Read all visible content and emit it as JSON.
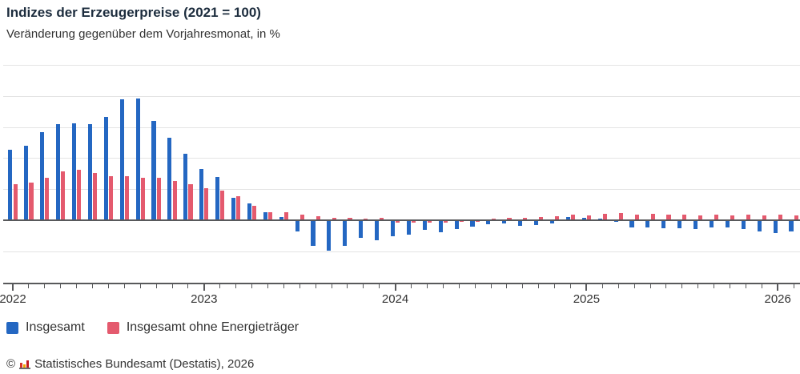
{
  "header": {
    "title": "Indizes der Erzeugerpreise (2021 = 100)",
    "subtitle": "Veränderung gegenüber dem Vorjahresmonat, in %"
  },
  "legend": {
    "items": [
      {
        "label": "Insgesamt",
        "color": "#2467c2"
      },
      {
        "label": "Insgesamt ohne Energieträger",
        "color": "#e45a6e"
      }
    ]
  },
  "footer": {
    "copyright_symbol": "©",
    "source_text": "Statistisches Bundesamt (Destatis), 2026"
  },
  "colors": {
    "background": "#ffffff",
    "gridline": "#e4e4e4",
    "axis": "#58595b",
    "text": "#333333",
    "title": "#1d2d3e",
    "series_total": "#2467c2",
    "series_ex_energy": "#e45a6e"
  },
  "chart_data": {
    "type": "bar",
    "title": "Indizes der Erzeugerpreise (2021 = 100)",
    "subtitle": "Veränderung gegenüber dem Vorjahresmonat, in %",
    "unit": "%",
    "ylim": [
      -20,
      50
    ],
    "grid": true,
    "gridline_values": [
      50,
      40,
      30,
      20,
      10,
      -10
    ],
    "x_tick_years": [
      "2022",
      "2023",
      "2024",
      "2025",
      "2026"
    ],
    "legend_position": "bottom-left",
    "categories": [
      "2022-01",
      "2022-02",
      "2022-03",
      "2022-04",
      "2022-05",
      "2022-06",
      "2022-07",
      "2022-08",
      "2022-09",
      "2022-10",
      "2022-11",
      "2022-12",
      "2023-01",
      "2023-02",
      "2023-03",
      "2023-04",
      "2023-05",
      "2023-06",
      "2023-07",
      "2023-08",
      "2023-09",
      "2023-10",
      "2023-11",
      "2023-12",
      "2024-01",
      "2024-02",
      "2024-03",
      "2024-04",
      "2024-05",
      "2024-06",
      "2024-07",
      "2024-08",
      "2024-09",
      "2024-10",
      "2024-11",
      "2024-12",
      "2025-01",
      "2025-02",
      "2025-03",
      "2025-04",
      "2025-05",
      "2025-06",
      "2025-07",
      "2025-08",
      "2025-09",
      "2025-10",
      "2025-11",
      "2025-12",
      "2026-01",
      "2026-02"
    ],
    "series": [
      {
        "name": "Insgesamt",
        "color": "#2467c2",
        "values": [
          22.4,
          23.6,
          28.1,
          30.7,
          30.9,
          30.7,
          33.1,
          38.7,
          39.0,
          31.6,
          26.4,
          21.1,
          16.2,
          13.6,
          6.9,
          5.1,
          2.3,
          0.8,
          -3.3,
          -8.1,
          -9.6,
          -8.0,
          -5.5,
          -6.1,
          -4.8,
          -4.4,
          -2.9,
          -3.7,
          -2.5,
          -1.7,
          -1.1,
          -0.9,
          -1.5,
          -1.2,
          -0.9,
          0.7,
          0.4,
          0.3,
          -0.3,
          -2.1,
          -2.0,
          -2.3,
          -2.4,
          -2.7,
          -2.1,
          -2.1,
          -2.7,
          -3.4,
          -3.9,
          -3.3
        ]
      },
      {
        "name": "Insgesamt ohne Energieträger",
        "color": "#e45a6e",
        "values": [
          11.4,
          11.8,
          13.3,
          15.5,
          15.9,
          14.9,
          14.0,
          13.8,
          13.3,
          13.3,
          12.3,
          11.4,
          10.1,
          9.4,
          7.5,
          4.3,
          2.4,
          2.2,
          1.5,
          1.1,
          0.4,
          0.4,
          0.3,
          0.4,
          -0.5,
          -0.6,
          -0.4,
          -0.5,
          -0.3,
          -0.2,
          0.3,
          0.4,
          0.5,
          0.9,
          1.1,
          1.5,
          1.3,
          1.7,
          2.0,
          1.5,
          1.8,
          1.5,
          1.5,
          1.3,
          1.5,
          1.3,
          1.5,
          1.3,
          1.6,
          1.4
        ]
      }
    ]
  }
}
